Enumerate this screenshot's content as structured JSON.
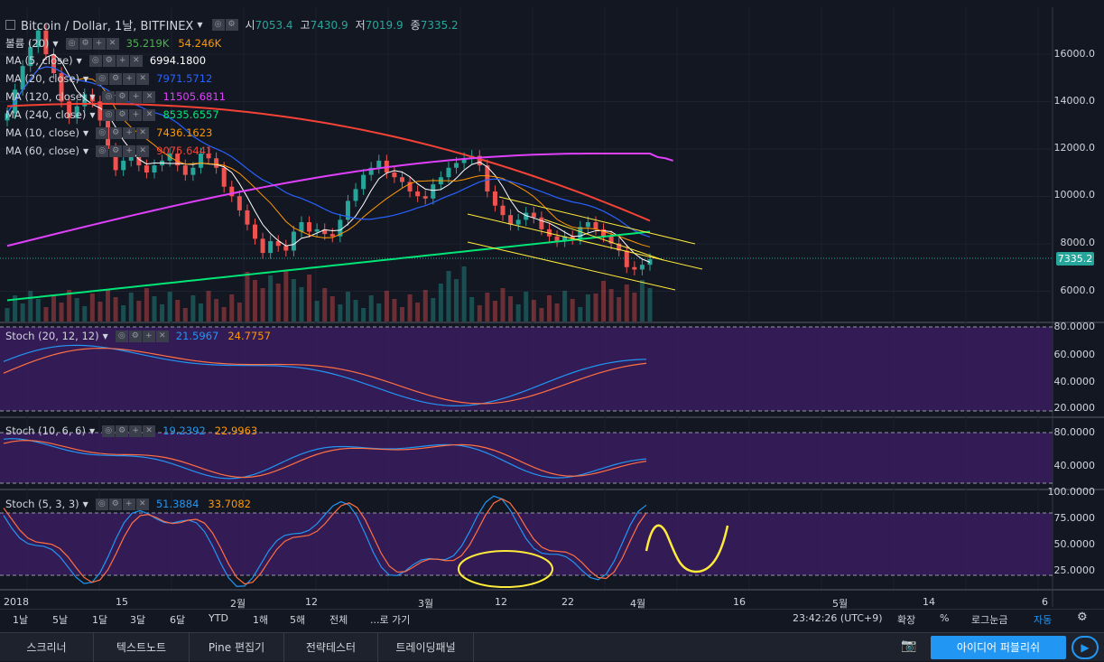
{
  "header": {
    "symbol": "Bitcoin / Dollar, 1날, BITFINEX",
    "open_label": "시",
    "open": "7053.4",
    "high_label": "고",
    "high": "7430.9",
    "low_label": "저",
    "low": "7019.9",
    "close_label": "종",
    "close": "7335.2"
  },
  "indicators": [
    {
      "name": "볼륨 (20)",
      "values": [
        "35.219K",
        "54.246K"
      ],
      "colors": [
        "#4caf50",
        "#ff9800"
      ]
    },
    {
      "name": "MA (5, close)",
      "values": [
        "6994.1800"
      ],
      "colors": [
        "#ffffff"
      ]
    },
    {
      "name": "MA (20, close)",
      "values": [
        "7971.5712"
      ],
      "colors": [
        "#2962ff"
      ]
    },
    {
      "name": "MA (120, close)",
      "values": [
        "11505.6811"
      ],
      "colors": [
        "#e040fb"
      ]
    },
    {
      "name": "MA (240, close)",
      "values": [
        "8535.6557"
      ],
      "colors": [
        "#00e676"
      ]
    },
    {
      "name": "MA (10, close)",
      "values": [
        "7436.1623"
      ],
      "colors": [
        "#ff9800"
      ]
    },
    {
      "name": "MA (60, close)",
      "values": [
        "9075.6441"
      ],
      "colors": [
        "#f44336"
      ]
    }
  ],
  "stoch_panels": [
    {
      "name": "Stoch (20, 12, 12)",
      "k": "21.5967",
      "d": "24.7757"
    },
    {
      "name": "Stoch (10, 6, 6)",
      "k": "19.2392",
      "d": "22.9963"
    },
    {
      "name": "Stoch (5, 3, 3)",
      "k": "51.3884",
      "d": "33.7082"
    }
  ],
  "price_axis": {
    "main": [
      "16000.0",
      "14000.0",
      "12000.0",
      "10000.0",
      "8000.0",
      "6000.0"
    ],
    "current": "7335.2",
    "stoch1": [
      "80.0000",
      "60.0000",
      "40.0000",
      "20.0000"
    ],
    "stoch2": [
      "80.0000",
      "40.0000"
    ],
    "stoch3": [
      "100.0000",
      "75.0000",
      "50.0000",
      "25.0000"
    ]
  },
  "time_axis": [
    "2018",
    "15",
    "2월",
    "12",
    "3월",
    "12",
    "22",
    "4월",
    "16",
    "5월",
    "14",
    "6"
  ],
  "toolbar": {
    "ranges": [
      "1날",
      "5날",
      "1달",
      "3달",
      "6달",
      "YTD",
      "1해",
      "5해",
      "전체"
    ],
    "goto": "...로 가기",
    "clock": "23:42:26 (UTC+9)",
    "right": [
      "확장",
      "%",
      "로그눈금",
      "자동"
    ]
  },
  "bottom_tabs": [
    "스크리너",
    "텍스트노트",
    "Pine 편집기",
    "전략테스터",
    "트레이딩패널"
  ],
  "publish_label": "아이디어 퍼블리쉬",
  "chart_data": {
    "type": "candlestick",
    "price_range": [
      5000,
      17000
    ],
    "closes": [
      13500,
      14500,
      15500,
      16300,
      17000,
      16000,
      15200,
      14000,
      13300,
      13800,
      14300,
      14000,
      13200,
      12000,
      11100,
      11500,
      11900,
      11300,
      11000,
      11300,
      11500,
      11800,
      11300,
      10900,
      11200,
      11800,
      11600,
      11200,
      10400,
      10000,
      9400,
      8800,
      8200,
      7600,
      8100,
      7900,
      7700,
      8500,
      8900,
      8500,
      8600,
      8400,
      8300,
      9000,
      9800,
      10300,
      10900,
      11200,
      11500,
      11000,
      10800,
      10600,
      10200,
      10000,
      9900,
      10500,
      10800,
      11200,
      11400,
      11600,
      11700,
      11300,
      10200,
      9600,
      9200,
      8800,
      9000,
      9300,
      9100,
      8600,
      8300,
      8100,
      8300,
      8200,
      8700,
      8900,
      8600,
      8300,
      8000,
      7700,
      7000,
      6900,
      7100,
      7335
    ]
  }
}
